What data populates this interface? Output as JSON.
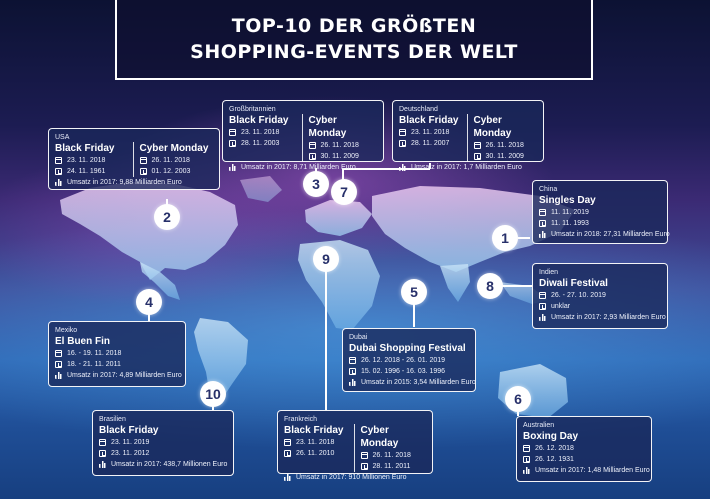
{
  "title": {
    "line1": "TOP-10 DER GRÖßTEN",
    "line2": "SHOPPING-EVENTS DER WELT"
  },
  "icons": {
    "date": "calendar-icon",
    "since": "history-icon",
    "revenue": "bar-chart-icon"
  },
  "markers": [
    "1",
    "2",
    "3",
    "4",
    "5",
    "6",
    "7",
    "8",
    "9",
    "10"
  ],
  "cards": {
    "usa": {
      "country": "USA",
      "left": {
        "event": "Black Friday",
        "date": "23. 11. 2018",
        "since": "24. 11. 1961"
      },
      "right": {
        "event": "Cyber Monday",
        "date": "26. 11. 2018",
        "since": "01. 12. 2003"
      },
      "revenue": "Umsatz in 2017: 9,88 Milliarden Euro"
    },
    "gb": {
      "country": "Großbritannien",
      "left": {
        "event": "Black Friday",
        "date": "23. 11. 2018",
        "since": "28. 11. 2003"
      },
      "right": {
        "event": "Cyber Monday",
        "date": "26. 11. 2018",
        "since": "30. 11. 2009"
      },
      "revenue": "Umsatz in 2017: 8,71 Milliarden Euro"
    },
    "de": {
      "country": "Deutschland",
      "left": {
        "event": "Black Friday",
        "date": "23. 11. 2018",
        "since": "28. 11. 2007"
      },
      "right": {
        "event": "Cyber Monday",
        "date": "26. 11. 2018",
        "since": "30. 11. 2009"
      },
      "revenue": "Umsatz in 2017: 1,7 Milliarden Euro"
    },
    "china": {
      "country": "China",
      "event": "Singles Day",
      "date": "11. 11. 2019",
      "since": "11. 11. 1993",
      "revenue": "Umsatz in 2018: 27,31 Milliarden Euro"
    },
    "india": {
      "country": "Indien",
      "event": "Diwali Festival",
      "date": "26. - 27. 10. 2019",
      "since": "unklar",
      "revenue": "Umsatz in 2017: 2,93 Milliarden Euro"
    },
    "mexico": {
      "country": "Mexiko",
      "event": "El Buen Fin",
      "date": "16. - 19. 11. 2018",
      "since": "18. - 21. 11. 2011",
      "revenue": "Umsatz in 2017: 4,89 Milliarden Euro"
    },
    "dubai": {
      "country": "Dubai",
      "event": "Dubai Shopping Festival",
      "date": "26. 12. 2018 - 26. 01. 2019",
      "since": "15. 02. 1996 - 16. 03. 1996",
      "revenue": "Umsatz in 2015: 3,54 Milliarden Euro"
    },
    "brazil": {
      "country": "Brasilien",
      "event": "Black Friday",
      "date": "23. 11. 2019",
      "since": "23. 11. 2012",
      "revenue": "Umsatz in 2017: 438,7 Millionen Euro"
    },
    "france": {
      "country": "Frankreich",
      "left": {
        "event": "Black Friday",
        "date": "23. 11. 2018",
        "since": "26. 11. 2010"
      },
      "right": {
        "event": "Cyber Monday",
        "date": "26. 11. 2018",
        "since": "28. 11. 2011"
      },
      "revenue": "Umsatz in 2017: 910 Millionen Euro"
    },
    "australia": {
      "country": "Australien",
      "event": "Boxing Day",
      "date": "26. 12. 2018",
      "since": "26. 12. 1931",
      "revenue": "Umsatz in 2017: 1,48 Milliarden Euro"
    }
  }
}
